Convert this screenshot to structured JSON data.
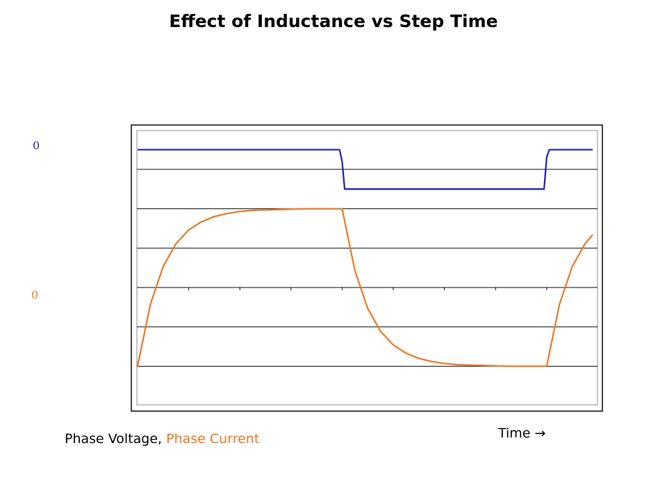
{
  "chart_data": {
    "type": "line",
    "title": "Effect of Inductance vs Step Time",
    "xlabel": "Time →",
    "xlim": [
      0,
      8.93
    ],
    "ylim": [
      -3.1,
      4.0
    ],
    "grid": true,
    "y_gridlines": [
      -2,
      -1,
      0,
      1,
      2,
      3
    ],
    "x_ticks": [
      1,
      2,
      3,
      4,
      5,
      6,
      7,
      8
    ],
    "zero_labels": [
      {
        "text": "0",
        "series": "Phase Voltage",
        "color": "#1f1fbf"
      },
      {
        "text": "0",
        "series": "Phase Current",
        "color": "#e87722"
      }
    ],
    "legend": {
      "placement": "bottom-left",
      "sep": ", "
    },
    "series": [
      {
        "name": "Phase Voltage",
        "color": "#1a1aaa",
        "x": [
          0,
          3.95,
          4.0,
          4.05,
          7.95,
          8.0,
          8.05,
          8.9
        ],
        "y": [
          3.5,
          3.5,
          3.2,
          2.5,
          2.5,
          3.3,
          3.5,
          3.5
        ]
      },
      {
        "name": "Phase Current",
        "color": "#e87722",
        "x": [
          0,
          0.25,
          0.5,
          0.75,
          1,
          1.25,
          1.5,
          1.75,
          2,
          2.25,
          2.5,
          2.75,
          3,
          3.25,
          3.5,
          3.75,
          4,
          4.25,
          4.5,
          4.75,
          5,
          5.25,
          5.5,
          5.75,
          6,
          6.25,
          6.5,
          6.75,
          7,
          7.25,
          7.5,
          7.75,
          8,
          8.25,
          8.5,
          8.75,
          8.9
        ],
        "y": [
          -2,
          -0.43,
          0.53,
          1.11,
          1.46,
          1.67,
          1.8,
          1.88,
          1.93,
          1.96,
          1.97,
          1.98,
          1.99,
          2,
          2,
          2,
          2,
          0.43,
          -0.53,
          -1.11,
          -1.46,
          -1.67,
          -1.8,
          -1.88,
          -1.93,
          -1.96,
          -1.97,
          -1.98,
          -1.99,
          -2,
          -2,
          -2,
          -2,
          -0.43,
          0.53,
          1.11,
          1.34
        ]
      }
    ]
  }
}
